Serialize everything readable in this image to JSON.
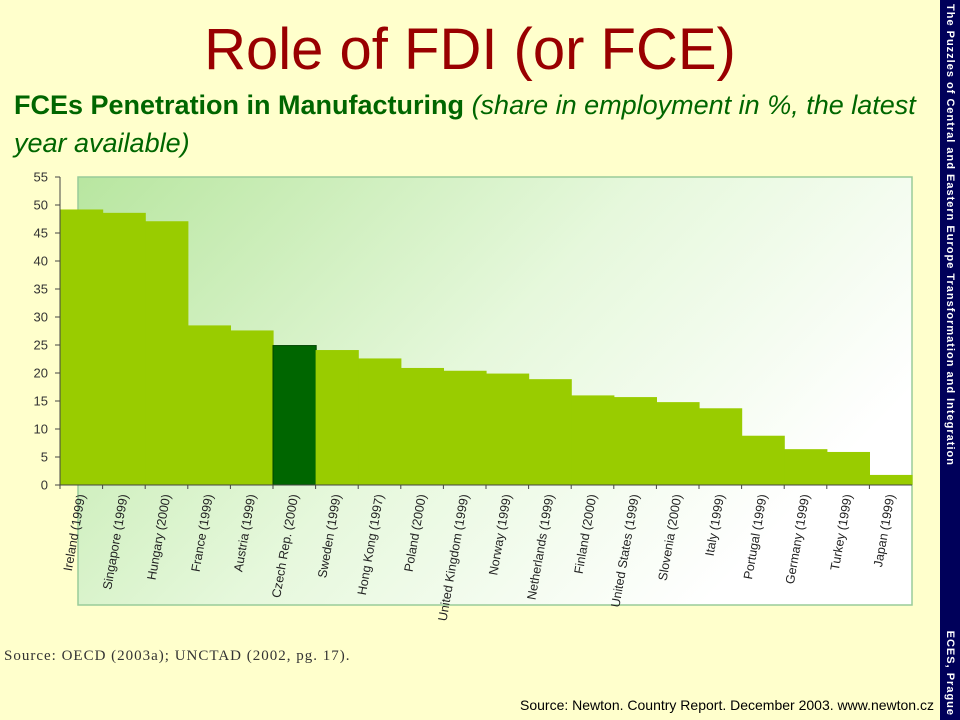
{
  "slide": {
    "title": "Role of FDI (or FCE)",
    "subtitle_bold": "FCEs Penetration in Manufacturing",
    "subtitle_italic": "(share in employment in %, the latest year available)",
    "sidebar_left": "The Puzzles of Central and Eastern Europe Transformation and Integration",
    "sidebar_right": "ECES, Prague",
    "oecd_source": "Source: OECD (2003a); UNCTAD (2002, pg. 17).",
    "footer_source": "Source: Newton. Country Report. December 2003. www.newton.cz"
  },
  "colors": {
    "bar": "#99cc00",
    "highlight_bar": "#006600",
    "title": "#990000",
    "subtitle": "#006600",
    "sidebar": "#00005a"
  },
  "chart_data": {
    "type": "bar",
    "title": "",
    "xlabel": "",
    "ylabel": "",
    "ylim": [
      0,
      55
    ],
    "yticks": [
      0,
      5,
      10,
      15,
      20,
      25,
      30,
      35,
      40,
      45,
      50,
      55
    ],
    "grid": false,
    "highlight_category": "Czech Rep. (2000)",
    "categories": [
      "Ireland (1999)",
      "Singapore (1999)",
      "Hungary (2000)",
      "France (1999)",
      "Austria (1999)",
      "Czech Rep. (2000)",
      "Sweden (1999)",
      "Hong Kong (1997)",
      "Poland (2000)",
      "United Kingdom (1999)",
      "Norway (1999)",
      "Netherlands (1999)",
      "Finland (2000)",
      "United States (1999)",
      "Slovenia (2000)",
      "Italy (1999)",
      "Portugal (1999)",
      "Germany (1999)",
      "Turkey (1999)",
      "Japan (1999)"
    ],
    "values": [
      49.2,
      48.6,
      47.1,
      28.5,
      27.6,
      24.9,
      24.1,
      22.6,
      20.9,
      20.4,
      19.9,
      18.9,
      16.0,
      15.7,
      14.8,
      13.7,
      8.8,
      6.4,
      5.9,
      1.8
    ]
  }
}
